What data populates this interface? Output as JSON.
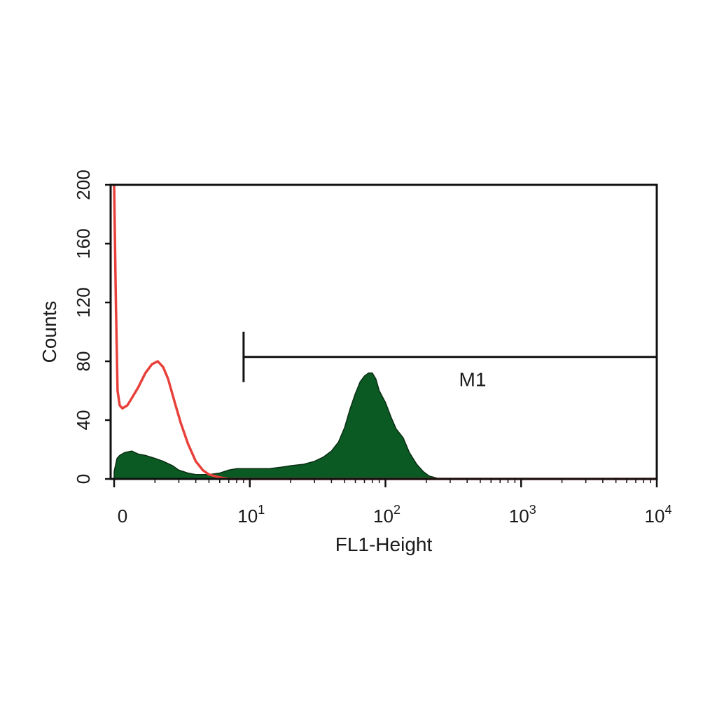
{
  "chart_data": {
    "type": "area",
    "xlabel": "FL1-Height",
    "ylabel": "Counts",
    "xscale": "log",
    "xlim": [
      1,
      10000
    ],
    "ylim": [
      0,
      200
    ],
    "grid": false,
    "legend": "none",
    "x_ticks": [
      {
        "value": 1,
        "base": "0",
        "exp": ""
      },
      {
        "value": 10,
        "base": "10",
        "exp": "1"
      },
      {
        "value": 100,
        "base": "10",
        "exp": "2"
      },
      {
        "value": 1000,
        "base": "10",
        "exp": "3"
      },
      {
        "value": 10000,
        "base": "10",
        "exp": "4"
      }
    ],
    "y_ticks": [
      {
        "value": 0,
        "label": "0"
      },
      {
        "value": 40,
        "label": "40"
      },
      {
        "value": 80,
        "label": "80"
      },
      {
        "value": 120,
        "label": "120"
      },
      {
        "value": 160,
        "label": "160"
      },
      {
        "value": 200,
        "label": "200"
      }
    ],
    "gate": {
      "label": "M1",
      "x_start": 9,
      "x_end": 10000,
      "y": 83
    },
    "series": [
      {
        "style": "filled",
        "color": "#0b5a24",
        "outline": "#0a2e12",
        "x": [
          1,
          1.05,
          1.1,
          1.2,
          1.35,
          1.5,
          1.7,
          2.0,
          2.3,
          2.7,
          3.0,
          3.5,
          4.0,
          5.0,
          6.0,
          7.0,
          8.0,
          9.0,
          10,
          12,
          14,
          17,
          20,
          25,
          30,
          35,
          40,
          45,
          50,
          55,
          60,
          65,
          70,
          75,
          80,
          85,
          90,
          100,
          110,
          120,
          135,
          150,
          170,
          190,
          210,
          230,
          250,
          300,
          1000,
          10000
        ],
        "y": [
          5,
          14,
          16,
          18,
          19,
          17,
          16,
          14,
          12,
          9,
          6,
          4,
          3,
          3,
          4,
          6,
          7,
          7,
          7,
          7,
          7,
          8,
          9,
          10,
          12,
          15,
          19,
          25,
          35,
          48,
          58,
          66,
          70,
          72,
          72,
          68,
          60,
          52,
          42,
          34,
          28,
          18,
          10,
          5,
          2,
          1,
          0,
          0,
          0,
          0
        ]
      },
      {
        "style": "line",
        "color": "#e8403a",
        "x": [
          1,
          1.03,
          1.06,
          1.1,
          1.15,
          1.25,
          1.35,
          1.5,
          1.7,
          1.9,
          2.1,
          2.3,
          2.5,
          2.8,
          3.1,
          3.5,
          4.0,
          4.5,
          5.0,
          5.5,
          6.0,
          7.0,
          8.0,
          10,
          100,
          1000,
          10000
        ],
        "y": [
          200,
          120,
          60,
          50,
          48,
          50,
          55,
          62,
          72,
          78,
          80,
          76,
          68,
          52,
          38,
          24,
          12,
          6,
          3,
          2,
          1,
          0,
          0,
          0,
          0,
          0,
          0
        ]
      }
    ]
  }
}
